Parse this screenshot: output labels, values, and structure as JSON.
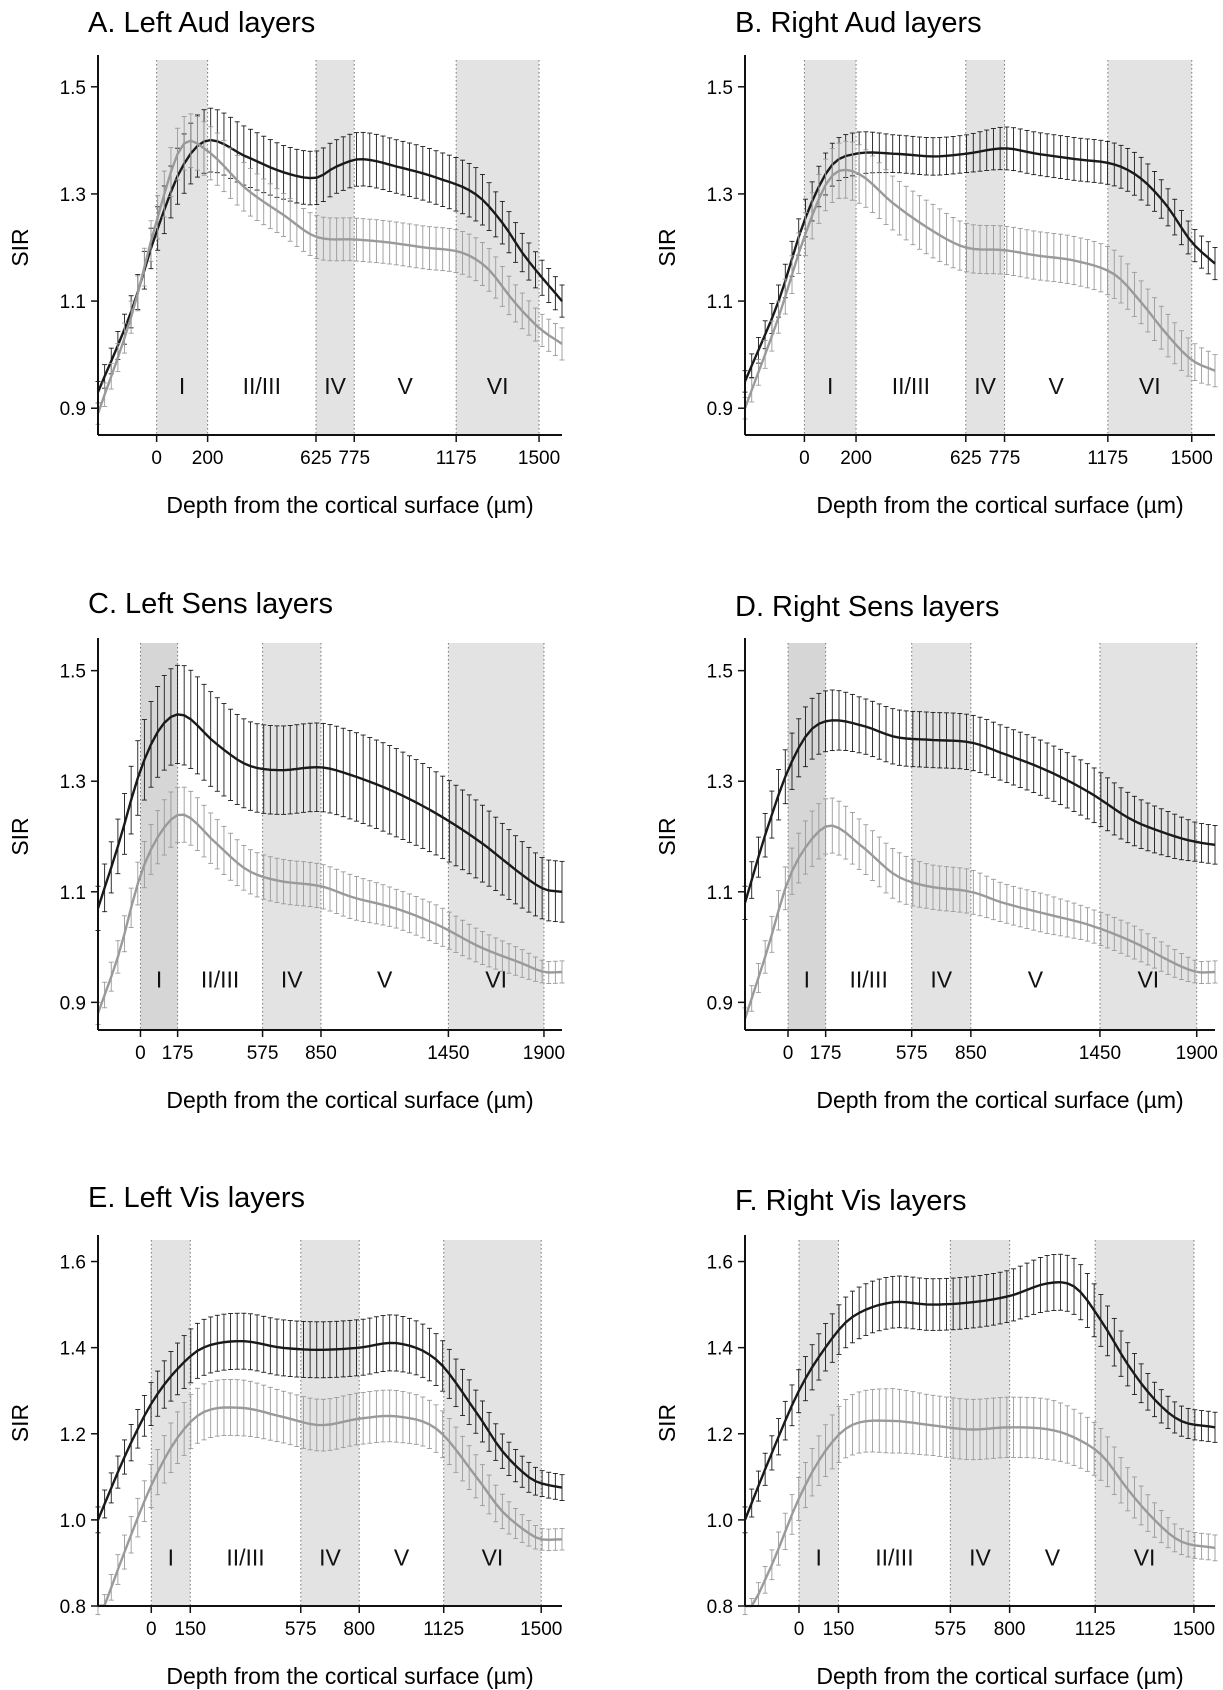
{
  "colors": {
    "dark_series": "#1a1a1a",
    "light_series": "#9a9a9a",
    "band": "#e3e3e3",
    "band_dark": "#d6d6d6",
    "axis": "#111111"
  },
  "chart_data": [
    {
      "type": "line",
      "title": "A. Left Aud layers",
      "xlabel": "Depth from the cortical surface (µm)",
      "ylabel": "SIR",
      "xlim": [
        -230,
        1590
      ],
      "ylim": [
        0.85,
        1.55
      ],
      "yticks": [
        "0.9",
        "1.1",
        "1.3",
        "1.5"
      ],
      "xticks": [
        "0",
        "200",
        "625",
        "775",
        "1175",
        "1500"
      ],
      "layers": [
        {
          "label": "I",
          "start": 0,
          "end": 200,
          "shaded": true
        },
        {
          "label": "II/III",
          "start": 200,
          "end": 625,
          "shaded": false
        },
        {
          "label": "IV",
          "start": 625,
          "end": 775,
          "shaded": true
        },
        {
          "label": "V",
          "start": 775,
          "end": 1175,
          "shaded": false
        },
        {
          "label": "VI",
          "start": 1175,
          "end": 1500,
          "shaded": true
        }
      ],
      "series": [
        {
          "color": "dark",
          "x": [
            -230,
            -100,
            0,
            100,
            200,
            350,
            500,
            625,
            700,
            800,
            950,
            1100,
            1250,
            1350,
            1450,
            1590
          ],
          "y": [
            0.93,
            1.08,
            1.23,
            1.35,
            1.4,
            1.37,
            1.34,
            1.33,
            1.35,
            1.365,
            1.35,
            1.33,
            1.3,
            1.25,
            1.18,
            1.1
          ],
          "err": [
            0.02,
            0.03,
            0.04,
            0.055,
            0.06,
            0.055,
            0.05,
            0.05,
            0.05,
            0.05,
            0.05,
            0.05,
            0.05,
            0.04,
            0.035,
            0.03
          ]
        },
        {
          "color": "light",
          "x": [
            -230,
            -100,
            0,
            100,
            200,
            350,
            500,
            625,
            775,
            900,
            1050,
            1200,
            1300,
            1400,
            1500,
            1590
          ],
          "y": [
            0.89,
            1.07,
            1.25,
            1.39,
            1.38,
            1.31,
            1.26,
            1.22,
            1.215,
            1.21,
            1.2,
            1.19,
            1.16,
            1.1,
            1.05,
            1.02
          ],
          "err": [
            0.02,
            0.03,
            0.04,
            0.05,
            0.05,
            0.045,
            0.04,
            0.04,
            0.04,
            0.04,
            0.04,
            0.04,
            0.04,
            0.035,
            0.03,
            0.03
          ]
        }
      ]
    },
    {
      "type": "line",
      "title": "B. Right Aud layers",
      "xlabel": "Depth from the cortical surface (µm)",
      "ylabel": "SIR",
      "xlim": [
        -230,
        1590
      ],
      "ylim": [
        0.85,
        1.55
      ],
      "yticks": [
        "0.9",
        "1.1",
        "1.3",
        "1.5"
      ],
      "xticks": [
        "0",
        "200",
        "625",
        "775",
        "1175",
        "1500"
      ],
      "layers": [
        {
          "label": "I",
          "start": 0,
          "end": 200,
          "shaded": true
        },
        {
          "label": "II/III",
          "start": 200,
          "end": 625,
          "shaded": false
        },
        {
          "label": "IV",
          "start": 625,
          "end": 775,
          "shaded": true
        },
        {
          "label": "V",
          "start": 775,
          "end": 1175,
          "shaded": false
        },
        {
          "label": "VI",
          "start": 1175,
          "end": 1500,
          "shaded": true
        }
      ],
      "series": [
        {
          "color": "dark",
          "x": [
            -230,
            -100,
            0,
            100,
            200,
            350,
            500,
            625,
            775,
            900,
            1050,
            1200,
            1300,
            1400,
            1500,
            1590
          ],
          "y": [
            0.95,
            1.1,
            1.25,
            1.35,
            1.375,
            1.375,
            1.37,
            1.375,
            1.385,
            1.375,
            1.365,
            1.355,
            1.33,
            1.28,
            1.21,
            1.17
          ],
          "err": [
            0.02,
            0.03,
            0.035,
            0.04,
            0.04,
            0.035,
            0.035,
            0.035,
            0.04,
            0.04,
            0.04,
            0.04,
            0.04,
            0.035,
            0.03,
            0.03
          ]
        },
        {
          "color": "light",
          "x": [
            -230,
            -100,
            0,
            100,
            200,
            350,
            500,
            625,
            775,
            900,
            1050,
            1200,
            1300,
            1400,
            1500,
            1590
          ],
          "y": [
            0.9,
            1.07,
            1.22,
            1.33,
            1.34,
            1.28,
            1.23,
            1.2,
            1.195,
            1.185,
            1.175,
            1.15,
            1.1,
            1.04,
            0.99,
            0.97
          ],
          "err": [
            0.02,
            0.03,
            0.04,
            0.05,
            0.055,
            0.05,
            0.05,
            0.045,
            0.045,
            0.045,
            0.045,
            0.045,
            0.04,
            0.04,
            0.035,
            0.03
          ]
        }
      ]
    },
    {
      "type": "line",
      "title": "C. Left Sens layers",
      "xlabel": "Depth from the cortical surface (µm)",
      "ylabel": "SIR",
      "xlim": [
        -200,
        1985
      ],
      "ylim": [
        0.85,
        1.55
      ],
      "yticks": [
        "0.9",
        "1.1",
        "1.3",
        "1.5"
      ],
      "xticks": [
        "0",
        "175",
        "575",
        "850",
        "1450",
        "1900"
      ],
      "layers": [
        {
          "label": "I",
          "start": 0,
          "end": 175,
          "shaded": true,
          "dark": true
        },
        {
          "label": "II/III",
          "start": 175,
          "end": 575,
          "shaded": false
        },
        {
          "label": "IV",
          "start": 575,
          "end": 850,
          "shaded": true
        },
        {
          "label": "V",
          "start": 850,
          "end": 1450,
          "shaded": false
        },
        {
          "label": "VI",
          "start": 1450,
          "end": 1900,
          "shaded": true
        }
      ],
      "series": [
        {
          "color": "dark",
          "x": [
            -200,
            -100,
            0,
            100,
            200,
            350,
            500,
            650,
            850,
            1000,
            1200,
            1400,
            1600,
            1800,
            1900,
            1985
          ],
          "y": [
            1.07,
            1.19,
            1.32,
            1.4,
            1.42,
            1.37,
            1.33,
            1.32,
            1.325,
            1.31,
            1.28,
            1.24,
            1.19,
            1.13,
            1.105,
            1.1
          ],
          "err": [
            0.04,
            0.05,
            0.07,
            0.085,
            0.09,
            0.085,
            0.08,
            0.08,
            0.08,
            0.08,
            0.08,
            0.075,
            0.07,
            0.06,
            0.055,
            0.055
          ]
        },
        {
          "color": "light",
          "x": [
            -200,
            -100,
            0,
            100,
            200,
            350,
            500,
            650,
            850,
            1000,
            1200,
            1400,
            1600,
            1800,
            1900,
            1985
          ],
          "y": [
            0.88,
            0.99,
            1.13,
            1.21,
            1.24,
            1.19,
            1.14,
            1.12,
            1.11,
            1.09,
            1.07,
            1.04,
            1.0,
            0.97,
            0.955,
            0.955
          ],
          "err": [
            0.02,
            0.03,
            0.04,
            0.05,
            0.05,
            0.045,
            0.04,
            0.04,
            0.04,
            0.04,
            0.035,
            0.035,
            0.03,
            0.025,
            0.02,
            0.02
          ]
        }
      ]
    },
    {
      "type": "line",
      "title": "D. Right Sens layers",
      "xlabel": "Depth from the cortical surface (µm)",
      "ylabel": "SIR",
      "xlim": [
        -200,
        1985
      ],
      "ylim": [
        0.85,
        1.55
      ],
      "yticks": [
        "0.9",
        "1.1",
        "1.3",
        "1.5"
      ],
      "xticks": [
        "0",
        "175",
        "575",
        "850",
        "1450",
        "1900"
      ],
      "layers": [
        {
          "label": "I",
          "start": 0,
          "end": 175,
          "shaded": true,
          "dark": true
        },
        {
          "label": "II/III",
          "start": 175,
          "end": 575,
          "shaded": false
        },
        {
          "label": "IV",
          "start": 575,
          "end": 850,
          "shaded": true
        },
        {
          "label": "V",
          "start": 850,
          "end": 1450,
          "shaded": false
        },
        {
          "label": "VI",
          "start": 1450,
          "end": 1900,
          "shaded": true
        }
      ],
      "series": [
        {
          "color": "dark",
          "x": [
            -200,
            -100,
            0,
            100,
            200,
            350,
            500,
            650,
            850,
            1000,
            1200,
            1400,
            1600,
            1800,
            1900,
            1985
          ],
          "y": [
            1.08,
            1.21,
            1.32,
            1.39,
            1.41,
            1.4,
            1.38,
            1.375,
            1.37,
            1.35,
            1.32,
            1.28,
            1.23,
            1.2,
            1.19,
            1.185
          ],
          "err": [
            0.03,
            0.04,
            0.05,
            0.055,
            0.055,
            0.05,
            0.05,
            0.05,
            0.05,
            0.05,
            0.05,
            0.05,
            0.045,
            0.04,
            0.035,
            0.035
          ]
        },
        {
          "color": "light",
          "x": [
            -200,
            -100,
            0,
            100,
            200,
            350,
            500,
            650,
            850,
            1000,
            1200,
            1400,
            1600,
            1800,
            1900,
            1985
          ],
          "y": [
            0.87,
            0.99,
            1.12,
            1.19,
            1.22,
            1.18,
            1.13,
            1.11,
            1.1,
            1.08,
            1.06,
            1.04,
            1.01,
            0.97,
            0.955,
            0.955
          ],
          "err": [
            0.02,
            0.03,
            0.04,
            0.05,
            0.05,
            0.045,
            0.045,
            0.04,
            0.04,
            0.035,
            0.035,
            0.03,
            0.03,
            0.025,
            0.02,
            0.02
          ]
        }
      ]
    },
    {
      "type": "line",
      "title": "E. Left Vis layers",
      "xlabel": "Depth from the cortical surface (µm)",
      "ylabel": "SIR",
      "xlim": [
        -205,
        1580
      ],
      "ylim": [
        0.8,
        1.65
      ],
      "yticks": [
        "0.8",
        "1.0",
        "1.2",
        "1.4",
        "1.6"
      ],
      "xticks": [
        "0",
        "150",
        "575",
        "800",
        "1125",
        "1500"
      ],
      "layers": [
        {
          "label": "I",
          "start": 0,
          "end": 150,
          "shaded": true
        },
        {
          "label": "II/III",
          "start": 150,
          "end": 575,
          "shaded": false
        },
        {
          "label": "IV",
          "start": 575,
          "end": 800,
          "shaded": true
        },
        {
          "label": "V",
          "start": 800,
          "end": 1125,
          "shaded": false
        },
        {
          "label": "VI",
          "start": 1125,
          "end": 1500,
          "shaded": true
        }
      ],
      "series": [
        {
          "color": "dark",
          "x": [
            -205,
            -100,
            0,
            100,
            200,
            350,
            500,
            650,
            800,
            950,
            1100,
            1250,
            1350,
            1450,
            1500,
            1580
          ],
          "y": [
            1.0,
            1.15,
            1.27,
            1.35,
            1.4,
            1.415,
            1.4,
            1.395,
            1.4,
            1.41,
            1.37,
            1.25,
            1.16,
            1.1,
            1.085,
            1.075
          ],
          "err": [
            0.03,
            0.04,
            0.05,
            0.06,
            0.065,
            0.065,
            0.065,
            0.065,
            0.065,
            0.065,
            0.06,
            0.05,
            0.04,
            0.035,
            0.03,
            0.03
          ]
        },
        {
          "color": "light",
          "x": [
            -205,
            -100,
            0,
            100,
            200,
            350,
            500,
            650,
            800,
            950,
            1100,
            1250,
            1350,
            1450,
            1500,
            1580
          ],
          "y": [
            0.76,
            0.93,
            1.08,
            1.19,
            1.25,
            1.26,
            1.24,
            1.22,
            1.235,
            1.24,
            1.21,
            1.1,
            1.02,
            0.97,
            0.955,
            0.955
          ],
          "err": [
            0.02,
            0.04,
            0.05,
            0.06,
            0.065,
            0.065,
            0.06,
            0.06,
            0.06,
            0.06,
            0.055,
            0.05,
            0.04,
            0.03,
            0.025,
            0.025
          ]
        }
      ]
    },
    {
      "type": "line",
      "title": "F. Right Vis layers",
      "xlabel": "Depth from the cortical surface (µm)",
      "ylabel": "SIR",
      "xlim": [
        -205,
        1580
      ],
      "ylim": [
        0.8,
        1.65
      ],
      "yticks": [
        "0.8",
        "1.0",
        "1.2",
        "1.4",
        "1.6"
      ],
      "xticks": [
        "0",
        "150",
        "575",
        "800",
        "1125",
        "1500"
      ],
      "layers": [
        {
          "label": "I",
          "start": 0,
          "end": 150,
          "shaded": true
        },
        {
          "label": "II/III",
          "start": 150,
          "end": 575,
          "shaded": false
        },
        {
          "label": "IV",
          "start": 575,
          "end": 800,
          "shaded": true
        },
        {
          "label": "V",
          "start": 800,
          "end": 1125,
          "shaded": false
        },
        {
          "label": "VI",
          "start": 1125,
          "end": 1500,
          "shaded": true
        }
      ],
      "series": [
        {
          "color": "dark",
          "x": [
            -205,
            -100,
            0,
            100,
            200,
            350,
            500,
            650,
            800,
            950,
            1050,
            1150,
            1250,
            1350,
            1450,
            1580
          ],
          "y": [
            1.0,
            1.16,
            1.3,
            1.4,
            1.47,
            1.505,
            1.5,
            1.505,
            1.52,
            1.55,
            1.54,
            1.46,
            1.36,
            1.28,
            1.23,
            1.215
          ],
          "err": [
            0.03,
            0.04,
            0.05,
            0.055,
            0.06,
            0.06,
            0.06,
            0.06,
            0.06,
            0.065,
            0.065,
            0.06,
            0.05,
            0.04,
            0.035,
            0.035
          ]
        },
        {
          "color": "light",
          "x": [
            -205,
            -100,
            0,
            100,
            200,
            350,
            500,
            650,
            800,
            950,
            1050,
            1150,
            1250,
            1350,
            1450,
            1580
          ],
          "y": [
            0.76,
            0.9,
            1.05,
            1.16,
            1.22,
            1.23,
            1.22,
            1.21,
            1.215,
            1.21,
            1.19,
            1.15,
            1.07,
            1.0,
            0.95,
            0.935
          ],
          "err": [
            0.02,
            0.035,
            0.05,
            0.06,
            0.07,
            0.075,
            0.07,
            0.07,
            0.07,
            0.07,
            0.065,
            0.06,
            0.05,
            0.04,
            0.03,
            0.03
          ]
        }
      ]
    }
  ]
}
